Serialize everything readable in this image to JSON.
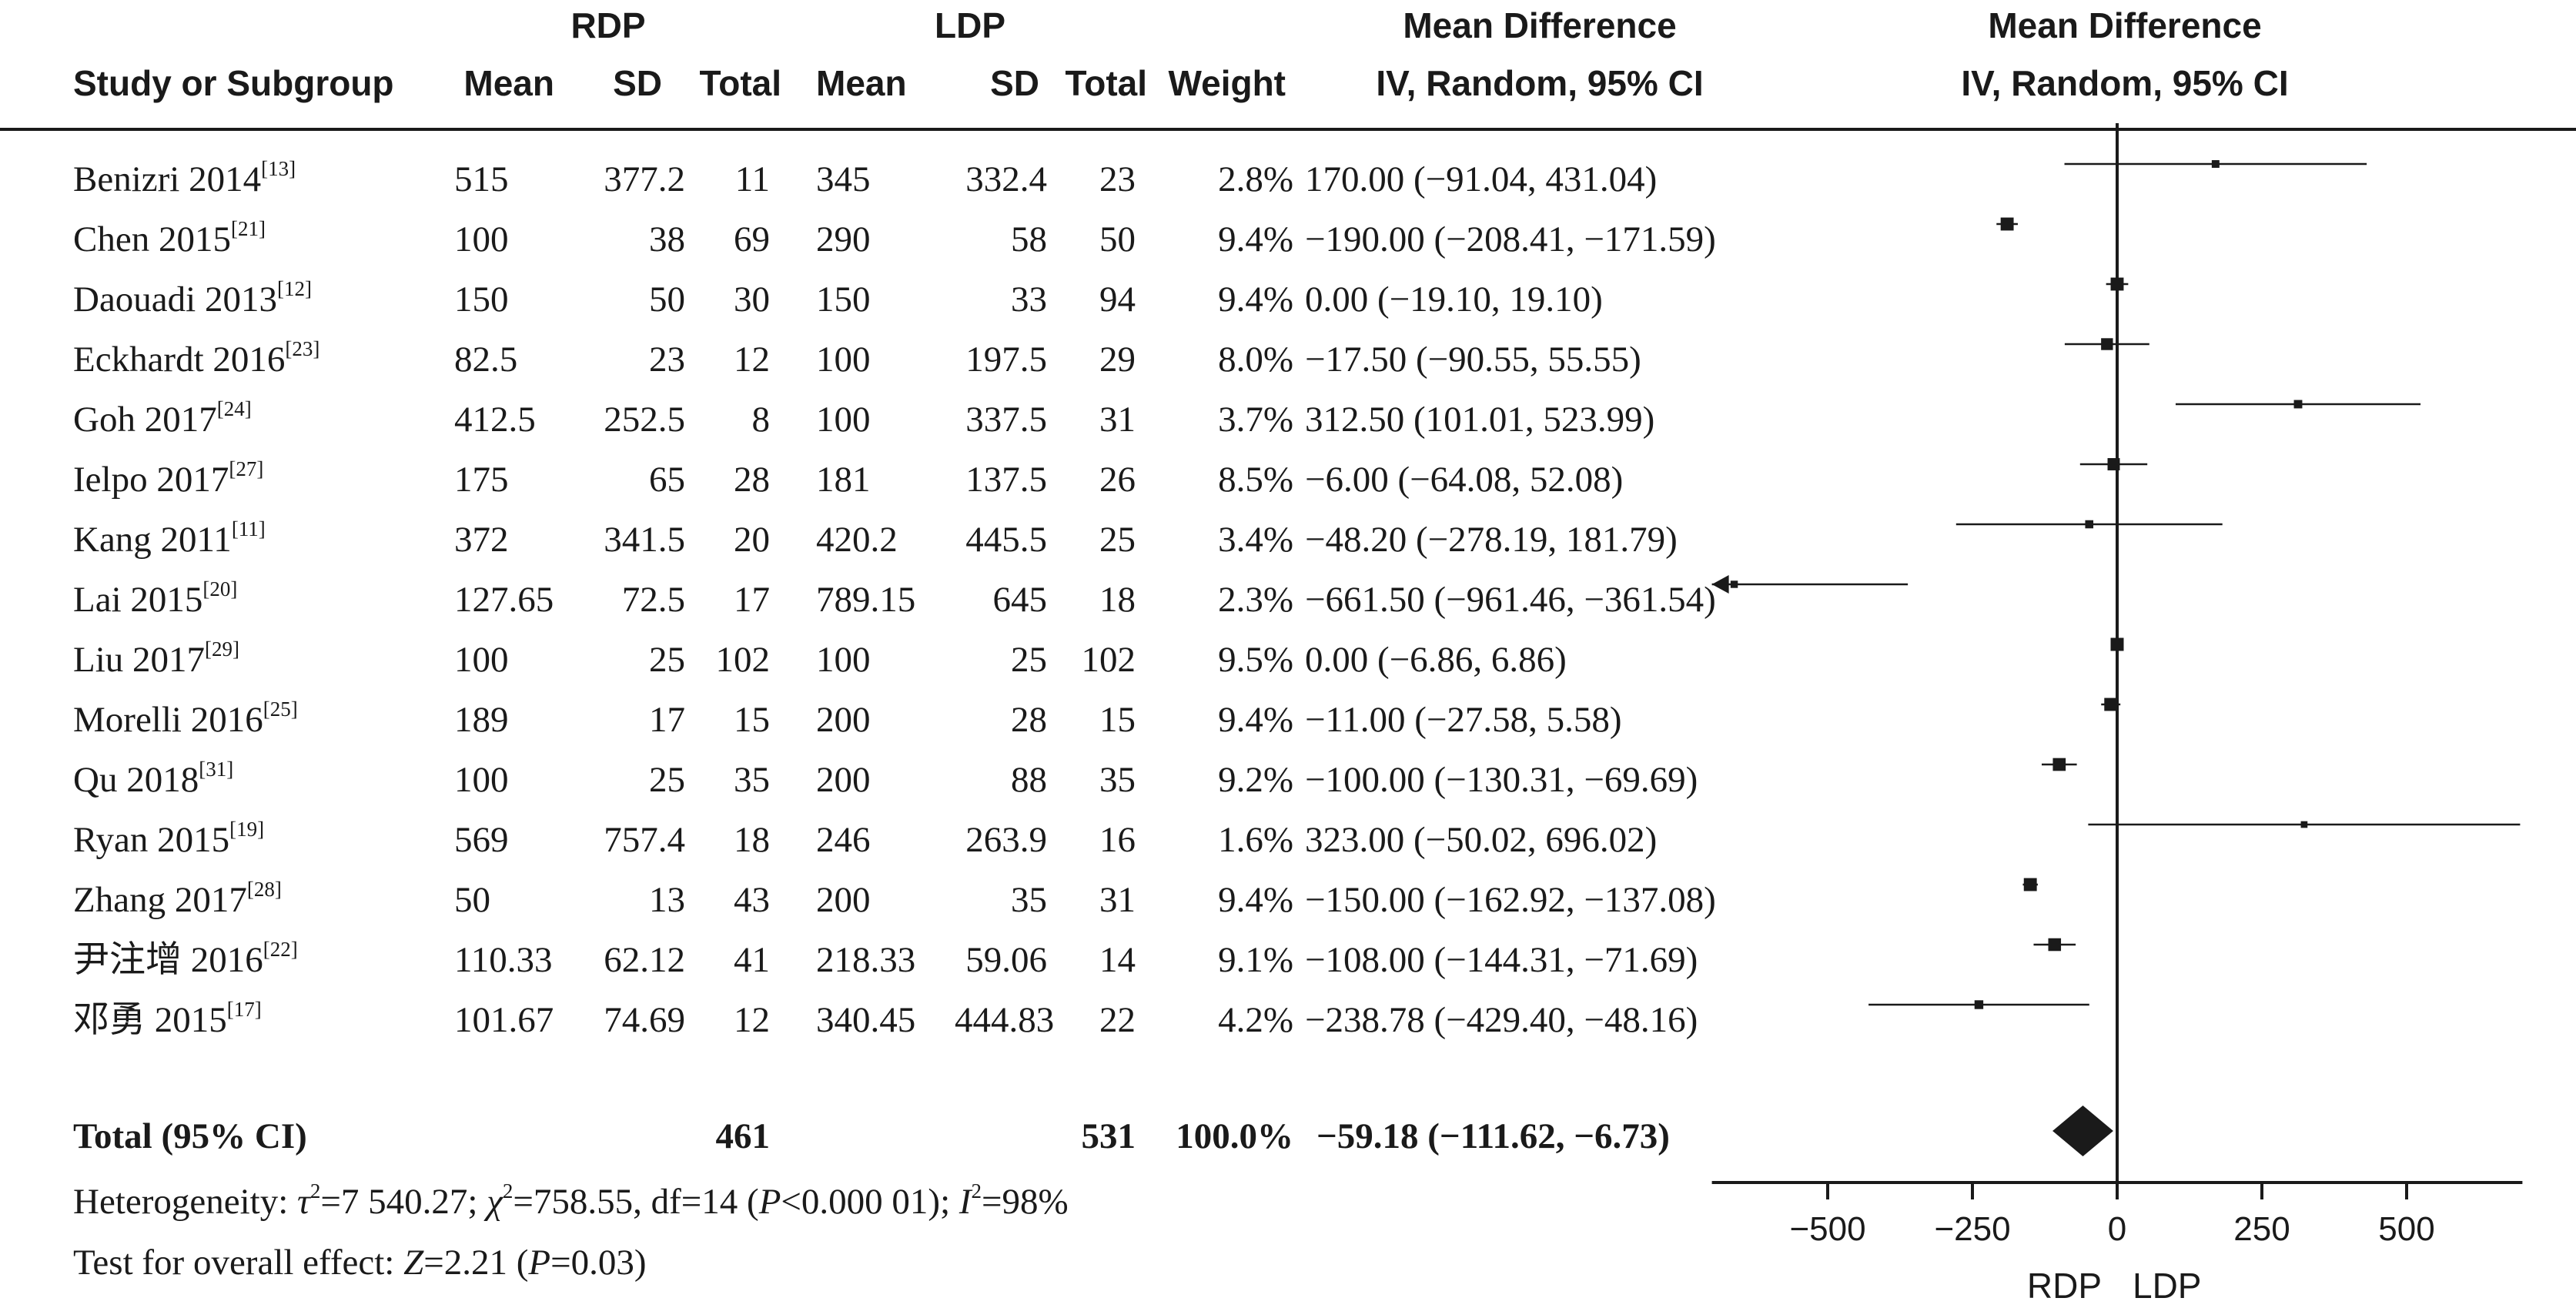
{
  "header": {
    "group_rdp": "RDP",
    "group_ldp": "LDP",
    "md_title": "Mean Difference",
    "md_method": "IV, Random, 95% CI",
    "plot_title": "Mean Difference",
    "plot_method": "IV, Random, 95% CI",
    "col_study": "Study or Subgroup",
    "col_mean1": "Mean",
    "col_sd1": "SD",
    "col_total1": "Total",
    "col_mean2": "Mean",
    "col_sd2": "SD",
    "col_total2": "Total",
    "col_weight": "Weight"
  },
  "rows": [
    {
      "study": "Benizri 2014",
      "ref": "[13]",
      "m1": "515",
      "sd1": "377.2",
      "n1": "11",
      "m2": "345",
      "sd2": "332.4",
      "n2": "23",
      "weight": "2.8%",
      "ci": "170.00 (−91.04, 431.04)"
    },
    {
      "study": "Chen 2015",
      "ref": "[21]",
      "m1": "100",
      "sd1": "38",
      "n1": "69",
      "m2": "290",
      "sd2": "58",
      "n2": "50",
      "weight": "9.4%",
      "ci": "−190.00 (−208.41, −171.59)"
    },
    {
      "study": "Daouadi 2013",
      "ref": "[12]",
      "m1": "150",
      "sd1": "50",
      "n1": "30",
      "m2": "150",
      "sd2": "33",
      "n2": "94",
      "weight": "9.4%",
      "ci": "0.00 (−19.10, 19.10)"
    },
    {
      "study": "Eckhardt 2016",
      "ref": "[23]",
      "m1": "82.5",
      "sd1": "23",
      "n1": "12",
      "m2": "100",
      "sd2": "197.5",
      "n2": "29",
      "weight": "8.0%",
      "ci": "−17.50 (−90.55, 55.55)"
    },
    {
      "study": "Goh 2017",
      "ref": "[24]",
      "m1": "412.5",
      "sd1": "252.5",
      "n1": "8",
      "m2": "100",
      "sd2": "337.5",
      "n2": "31",
      "weight": "3.7%",
      "ci": "312.50 (101.01, 523.99)"
    },
    {
      "study": "Ielpo 2017",
      "ref": "[27]",
      "m1": "175",
      "sd1": "65",
      "n1": "28",
      "m2": "181",
      "sd2": "137.5",
      "n2": "26",
      "weight": "8.5%",
      "ci": "−6.00 (−64.08, 52.08)"
    },
    {
      "study": "Kang 2011",
      "ref": "[11]",
      "m1": "372",
      "sd1": "341.5",
      "n1": "20",
      "m2": "420.2",
      "sd2": "445.5",
      "n2": "25",
      "weight": "3.4%",
      "ci": "−48.20 (−278.19, 181.79)"
    },
    {
      "study": "Lai 2015",
      "ref": "[20]",
      "m1": "127.65",
      "sd1": "72.5",
      "n1": "17",
      "m2": "789.15",
      "sd2": "645",
      "n2": "18",
      "weight": "2.3%",
      "ci": "−661.50 (−961.46, −361.54)"
    },
    {
      "study": "Liu 2017",
      "ref": "[29]",
      "m1": "100",
      "sd1": "25",
      "n1": "102",
      "m2": "100",
      "sd2": "25",
      "n2": "102",
      "weight": "9.5%",
      "ci": "0.00 (−6.86, 6.86)"
    },
    {
      "study": "Morelli 2016",
      "ref": "[25]",
      "m1": "189",
      "sd1": "17",
      "n1": "15",
      "m2": "200",
      "sd2": "28",
      "n2": "15",
      "weight": "9.4%",
      "ci": "−11.00 (−27.58, 5.58)"
    },
    {
      "study": "Qu 2018",
      "ref": "[31]",
      "m1": "100",
      "sd1": "25",
      "n1": "35",
      "m2": "200",
      "sd2": "88",
      "n2": "35",
      "weight": "9.2%",
      "ci": "−100.00 (−130.31, −69.69)"
    },
    {
      "study": "Ryan 2015",
      "ref": "[19]",
      "m1": "569",
      "sd1": "757.4",
      "n1": "18",
      "m2": "246",
      "sd2": "263.9",
      "n2": "16",
      "weight": "1.6%",
      "ci": "323.00 (−50.02, 696.02)"
    },
    {
      "study": "Zhang 2017",
      "ref": "[28]",
      "m1": "50",
      "sd1": "13",
      "n1": "43",
      "m2": "200",
      "sd2": "35",
      "n2": "31",
      "weight": "9.4%",
      "ci": "−150.00 (−162.92, −137.08)"
    },
    {
      "study": "尹注增 2016",
      "ref": "[22]",
      "m1": "110.33",
      "sd1": "62.12",
      "n1": "41",
      "m2": "218.33",
      "sd2": "59.06",
      "n2": "14",
      "weight": "9.1%",
      "ci": "−108.00 (−144.31, −71.69)"
    },
    {
      "study": "邓勇 2015",
      "ref": "[17]",
      "m1": "101.67",
      "sd1": "74.69",
      "n1": "12",
      "m2": "340.45",
      "sd2": "444.83",
      "n2": "22",
      "weight": "4.2%",
      "ci": "−238.78 (−429.40, −48.16)"
    }
  ],
  "total": {
    "label": "Total (95% CI)",
    "n1": "461",
    "n2": "531",
    "weight": "100.0%",
    "ci": "−59.18 (−111.62, −6.73)"
  },
  "footer": {
    "heterogeneity_prefix": "Heterogeneity: ",
    "tau_sym": "τ",
    "tau_rest": "=7 540.27; ",
    "chi_sym": "χ",
    "chi_rest": "=758.55, df=14 (",
    "p_sym": "P",
    "p_rest": "<0.000 01); ",
    "i_sym": "I",
    "i_rest": "=98%",
    "sq": "2",
    "overall_prefix": "Test for overall effect: ",
    "z_sym": "Z",
    "z_rest": "=2.21 (",
    "p2_sym": "P",
    "p2_rest": "=0.03)"
  },
  "chart_data": {
    "type": "forest",
    "xlim": [
      -700,
      700
    ],
    "xticks": [
      -500,
      -250,
      0,
      250,
      500
    ],
    "xtick_labels": [
      "−500",
      "−250",
      "0",
      "250",
      "500"
    ],
    "favours_left": "RDP",
    "favours_right": "LDP",
    "studies": [
      {
        "study": "Benizri 2014",
        "md": 170.0,
        "lo": -91.04,
        "hi": 431.04,
        "weight": 2.8
      },
      {
        "study": "Chen 2015",
        "md": -190.0,
        "lo": -208.41,
        "hi": -171.59,
        "weight": 9.4
      },
      {
        "study": "Daouadi 2013",
        "md": 0.0,
        "lo": -19.1,
        "hi": 19.1,
        "weight": 9.4
      },
      {
        "study": "Eckhardt 2016",
        "md": -17.5,
        "lo": -90.55,
        "hi": 55.55,
        "weight": 8.0
      },
      {
        "study": "Goh 2017",
        "md": 312.5,
        "lo": 101.01,
        "hi": 523.99,
        "weight": 3.7
      },
      {
        "study": "Ielpo 2017",
        "md": -6.0,
        "lo": -64.08,
        "hi": 52.08,
        "weight": 8.5
      },
      {
        "study": "Kang 2011",
        "md": -48.2,
        "lo": -278.19,
        "hi": 181.79,
        "weight": 3.4
      },
      {
        "study": "Lai 2015",
        "md": -661.5,
        "lo": -961.46,
        "hi": -361.54,
        "weight": 2.3
      },
      {
        "study": "Liu 2017",
        "md": 0.0,
        "lo": -6.86,
        "hi": 6.86,
        "weight": 9.5
      },
      {
        "study": "Morelli 2016",
        "md": -11.0,
        "lo": -27.58,
        "hi": 5.58,
        "weight": 9.4
      },
      {
        "study": "Qu 2018",
        "md": -100.0,
        "lo": -130.31,
        "hi": -69.69,
        "weight": 9.2
      },
      {
        "study": "Ryan 2015",
        "md": 323.0,
        "lo": -50.02,
        "hi": 696.02,
        "weight": 1.6
      },
      {
        "study": "Zhang 2017",
        "md": -150.0,
        "lo": -162.92,
        "hi": -137.08,
        "weight": 9.4
      },
      {
        "study": "尹注增 2016",
        "md": -108.0,
        "lo": -144.31,
        "hi": -71.69,
        "weight": 9.1
      },
      {
        "study": "邓勇 2015",
        "md": -238.78,
        "lo": -429.4,
        "hi": -48.16,
        "weight": 4.2
      }
    ],
    "pooled": {
      "md": -59.18,
      "lo": -111.62,
      "hi": -6.73
    }
  }
}
